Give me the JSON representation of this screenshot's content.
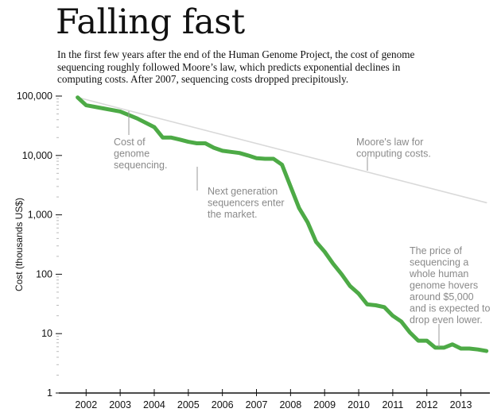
{
  "title": "Falling fast",
  "subtitle": "In the first few years after the end of the Human Genome Project, the cost of genome sequencing roughly followed Moore’s law, which predicts exponential declines in computing costs. After 2007, sequencing costs dropped precipitously.",
  "chart_data": {
    "type": "line",
    "ylabel": "Cost (thousands US$)",
    "xlabel": "",
    "y_scale": "log",
    "ylim": [
      1,
      100000
    ],
    "xlim": [
      2001.2,
      2013.85
    ],
    "y_ticks": [
      1,
      10,
      100,
      1000,
      10000,
      100000
    ],
    "y_tick_labels": [
      "1",
      "10",
      "100",
      "1,000",
      "10,000",
      "100,000"
    ],
    "x_ticks": [
      2002,
      2003,
      2004,
      2005,
      2006,
      2007,
      2008,
      2009,
      2010,
      2011,
      2012,
      2013
    ],
    "x_tick_labels": [
      "2002",
      "2003",
      "2004",
      "2005",
      "2006",
      "2007",
      "2008",
      "2009",
      "2010",
      "2011",
      "2012",
      "2013"
    ],
    "grid": false,
    "series": [
      {
        "name": "Cost of genome sequencing.",
        "color": "#4daa46",
        "x": [
          2001.75,
          2002.0,
          2002.5,
          2003.0,
          2003.5,
          2004.0,
          2004.25,
          2004.5,
          2004.75,
          2005.0,
          2005.25,
          2005.5,
          2005.75,
          2006.0,
          2006.25,
          2006.5,
          2006.75,
          2007.0,
          2007.25,
          2007.5,
          2007.75,
          2008.0,
          2008.25,
          2008.5,
          2008.75,
          2009.0,
          2009.25,
          2009.5,
          2009.75,
          2010.0,
          2010.25,
          2010.5,
          2010.75,
          2011.0,
          2011.25,
          2011.5,
          2011.75,
          2012.0,
          2012.25,
          2012.5,
          2012.75,
          2013.0,
          2013.25,
          2013.5,
          2013.75
        ],
        "y": [
          95000,
          70000,
          62000,
          55000,
          42000,
          30000,
          20000,
          20000,
          18500,
          17000,
          16000,
          16000,
          13500,
          12000,
          11500,
          11000,
          10000,
          9000,
          8800,
          8800,
          7000,
          3000,
          1300,
          750,
          350,
          240,
          150,
          100,
          63,
          47,
          31,
          30,
          28,
          20,
          16,
          10.5,
          7.6,
          7.6,
          5.8,
          5.8,
          6.6,
          5.6,
          5.6,
          5.4,
          5.1
        ]
      },
      {
        "name": "Moore's law for computing costs.",
        "color": "#d9d9d9",
        "x": [
          2001.75,
          2013.75
        ],
        "y": [
          95000,
          1600
        ]
      }
    ],
    "annotations": [
      {
        "lines": [
          "Cost of",
          "genome",
          "sequencing."
        ]
      },
      {
        "lines": [
          "Moore's law for",
          "computing costs."
        ]
      },
      {
        "lines": [
          "Next generation",
          "sequencers enter",
          "the market."
        ]
      },
      {
        "lines": [
          "The price of",
          "sequencing a",
          "whole human",
          "genome hovers",
          "around $5,000",
          "and is expected to",
          "drop even lower."
        ]
      }
    ]
  }
}
